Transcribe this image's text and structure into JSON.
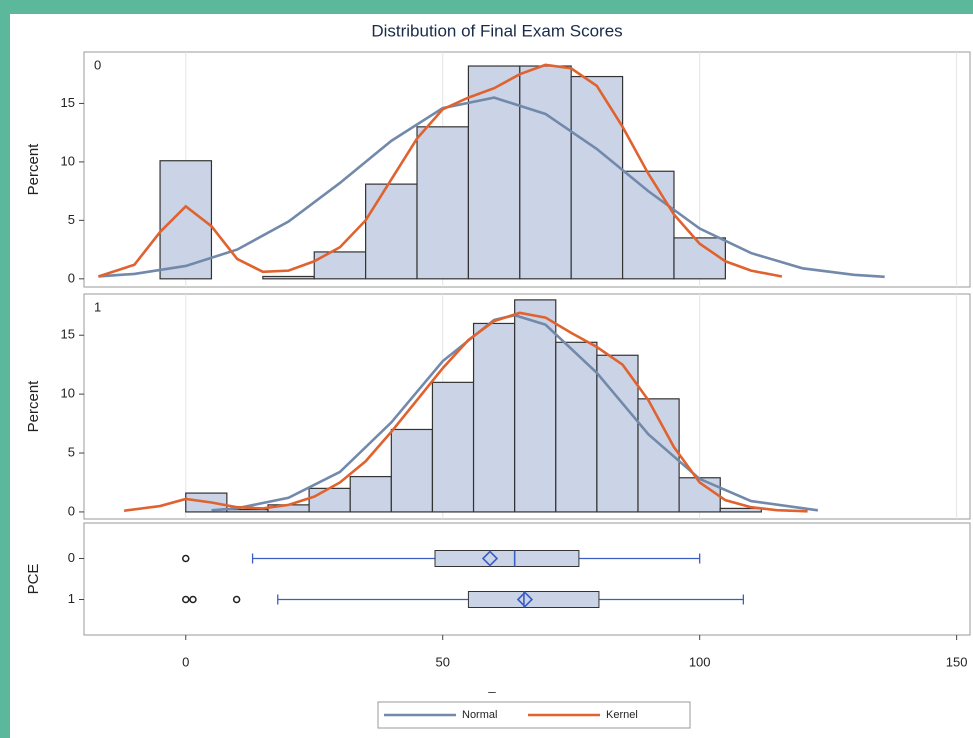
{
  "chart_data": [
    {
      "type": "histogram",
      "title": "Distribution of Final Exam Scores",
      "panel_label": "0",
      "ylabel": "Percent",
      "bins": [
        -5,
        5,
        15,
        25,
        35,
        45,
        55,
        65,
        75,
        85,
        95,
        105
      ],
      "values": [
        10.1,
        0,
        0.2,
        2.3,
        8.1,
        13,
        18.2,
        18.2,
        17.3,
        9.2,
        3.5
      ],
      "color": "#cbd4e6",
      "xlim": [
        -19.8,
        152.6
      ],
      "ylim": [
        -0.7,
        19.4
      ],
      "yticks": [
        0,
        5,
        10,
        15
      ],
      "grid": true,
      "series": [
        {
          "name": "Normal",
          "color": "#7289ab",
          "x": [
            -17,
            -10,
            0,
            10,
            20,
            30,
            40,
            50,
            60,
            70,
            80,
            90,
            100,
            110,
            120,
            130,
            136
          ],
          "values": [
            0.2,
            0.42,
            1.1,
            2.5,
            4.9,
            8.2,
            11.8,
            14.6,
            15.5,
            14.1,
            11.1,
            7.5,
            4.3,
            2.2,
            0.9,
            0.34,
            0.17
          ]
        },
        {
          "name": "Kernel",
          "color": "#e0622f",
          "x": [
            -17,
            -10,
            -5,
            0,
            5,
            10,
            15,
            20,
            25,
            30,
            35,
            40,
            45,
            50,
            55,
            60,
            65,
            70,
            75,
            80,
            85,
            90,
            95,
            100,
            105,
            110,
            116
          ],
          "values": [
            0.2,
            1.2,
            4,
            6.2,
            4.5,
            1.7,
            0.6,
            0.7,
            1.5,
            2.7,
            5,
            8.5,
            12,
            14.5,
            15.5,
            16.3,
            17.5,
            18.3,
            18,
            16.5,
            13,
            9,
            5.5,
            3,
            1.5,
            0.7,
            0.2
          ]
        }
      ]
    },
    {
      "type": "histogram",
      "panel_label": "1",
      "ylabel": "Percent",
      "bins": [
        0,
        8,
        16,
        24,
        32,
        40,
        48,
        56,
        64,
        72,
        80,
        88,
        96,
        104,
        112
      ],
      "values": [
        1.6,
        0.2,
        0.6,
        2,
        3,
        7,
        11,
        16,
        18,
        14.4,
        13.3,
        9.6,
        2.9,
        0.3
      ],
      "color": "#cbd4e6",
      "xlim": [
        -19.8,
        152.6
      ],
      "ylim": [
        -0.6,
        18.5
      ],
      "yticks": [
        0,
        5,
        10,
        15
      ],
      "grid": true,
      "series": [
        {
          "name": "Normal",
          "color": "#7289ab",
          "x": [
            5,
            10,
            20,
            30,
            40,
            50,
            60,
            64,
            70,
            80,
            90,
            100,
            110,
            123
          ],
          "values": [
            0.14,
            0.31,
            1.2,
            3.4,
            7.6,
            12.8,
            16.3,
            16.7,
            15.9,
            11.8,
            6.6,
            2.8,
            0.92,
            0.14
          ]
        },
        {
          "name": "Kernel",
          "color": "#e0622f",
          "x": [
            -12,
            -5,
            0,
            5,
            10,
            15,
            20,
            25,
            30,
            35,
            40,
            45,
            50,
            55,
            60,
            65,
            70,
            75,
            80,
            85,
            90,
            95,
            100,
            105,
            110,
            115,
            121
          ],
          "values": [
            0.1,
            0.5,
            1.1,
            0.8,
            0.4,
            0.3,
            0.6,
            1.3,
            2.5,
            4.3,
            6.8,
            9.5,
            12.2,
            14.6,
            16.2,
            16.9,
            16.5,
            15.2,
            14,
            12.5,
            9.5,
            5.5,
            2.5,
            1,
            0.4,
            0.15,
            0.05
          ]
        }
      ]
    },
    {
      "type": "box",
      "ylabel": "PCE",
      "xlabel": "_",
      "categories": [
        "0",
        "1"
      ],
      "color": "#cbd4e6",
      "line_color": "#3a5fc4",
      "xlim": [
        -19.8,
        152.6
      ],
      "xticks": [
        0,
        50,
        100,
        150
      ],
      "boxes": [
        {
          "min": 13,
          "q1": 48.5,
          "median": 64,
          "q3": 76.5,
          "max": 100,
          "mean": 59.2,
          "outliers": [
            0
          ]
        },
        {
          "min": 17.9,
          "q1": 55,
          "median": 65.8,
          "q3": 80.4,
          "max": 108.5,
          "mean": 66,
          "outliers": [
            0,
            1.4,
            9.9
          ]
        }
      ]
    }
  ]
}
